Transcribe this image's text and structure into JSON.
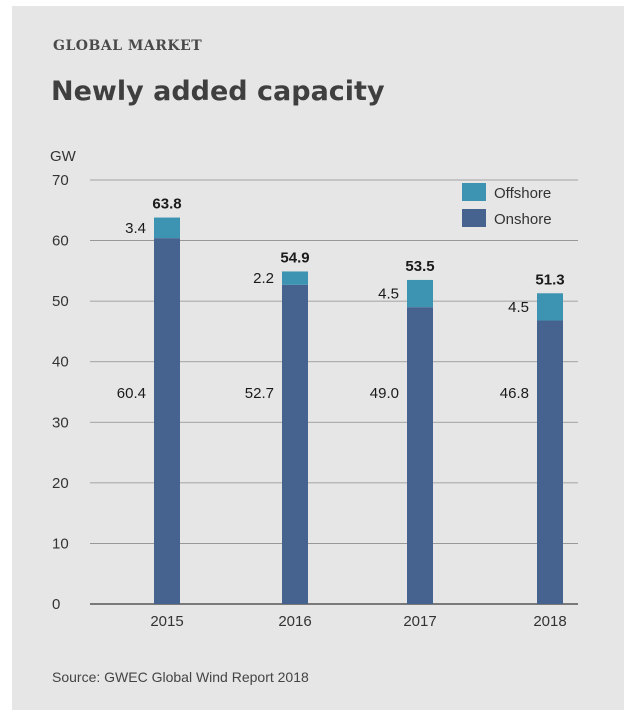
{
  "header": {
    "kicker": "GLOBAL MARKET",
    "title": "Newly added capacity"
  },
  "footer": {
    "source": "Source: GWEC Global Wind Report 2018"
  },
  "colors": {
    "onshore": "#46628f",
    "offshore": "#3d93b2",
    "grid": "#8c8c8c",
    "panel": "#e6e6e6"
  },
  "chart_data": {
    "type": "bar",
    "stacked": true,
    "categories": [
      "2015",
      "2016",
      "2017",
      "2018"
    ],
    "series": [
      {
        "name": "Onshore",
        "values": [
          60.4,
          52.7,
          49.0,
          46.8
        ]
      },
      {
        "name": "Offshore",
        "values": [
          3.4,
          2.2,
          4.5,
          4.5
        ]
      }
    ],
    "onshore_labels": [
      "60.4",
      "52.7",
      "49.0",
      "46.8"
    ],
    "offshore_labels": [
      "3.4",
      "2.2",
      "4.5",
      "4.5"
    ],
    "totals": [
      "63.8",
      "54.9",
      "53.5",
      "51.3"
    ],
    "ylabel": "GW",
    "ylim": [
      0,
      70
    ],
    "yticks": [
      0,
      10,
      20,
      30,
      40,
      50,
      60,
      70
    ],
    "grid": true,
    "legend_position": "top-right"
  }
}
